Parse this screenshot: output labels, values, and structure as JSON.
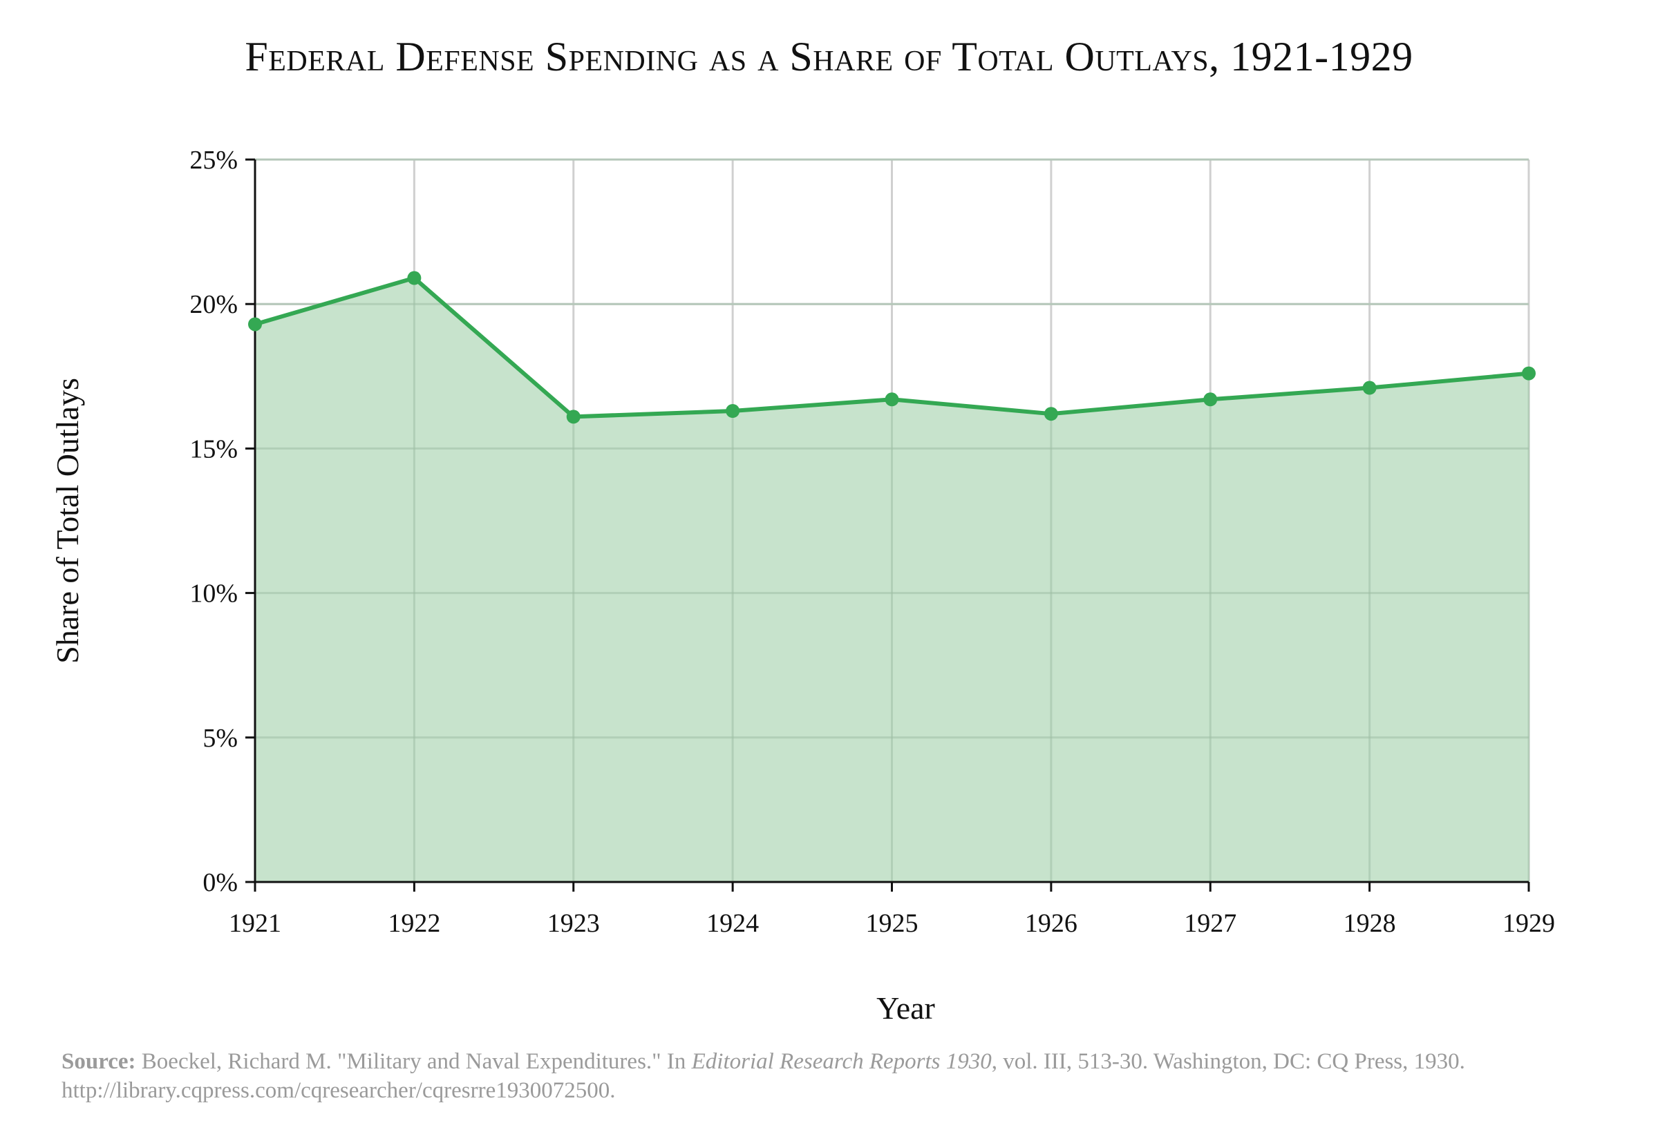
{
  "chart_data": {
    "type": "area",
    "title": "Federal Defense Spending as a Share of Total Outlays, 1921-1929",
    "xlabel": "Year",
    "ylabel": "Share of Total Outlays",
    "x": [
      1921,
      1922,
      1923,
      1924,
      1925,
      1926,
      1927,
      1928,
      1929
    ],
    "x_tick_labels": [
      "1921",
      "1922",
      "1923",
      "1924",
      "1925",
      "1926",
      "1927",
      "1928",
      "1929"
    ],
    "y_tick_labels": [
      "0%",
      "5%",
      "10%",
      "15%",
      "20%",
      "25%"
    ],
    "y_ticks": [
      0,
      5,
      10,
      15,
      20,
      25
    ],
    "ylim": [
      0,
      25
    ],
    "series": [
      {
        "values": [
          19.3,
          20.9,
          16.1,
          16.3,
          16.7,
          16.2,
          16.7,
          17.1,
          17.6
        ]
      }
    ],
    "grid": true,
    "colors": {
      "line": "#34a853",
      "fill": "#c7e3cc",
      "grid": "#d0d0d0",
      "axis": "#111111"
    }
  },
  "source": {
    "label": "Source:",
    "text_before": "Boeckel, Richard M. \"Military and Naval Expenditures.\" In ",
    "italic": "Editorial Research Reports 1930",
    "text_after": ", vol. III, 513-30. Washington, DC: CQ Press, 1930. http://library.cqpress.com/cqresearcher/cqresrre1930072500."
  }
}
